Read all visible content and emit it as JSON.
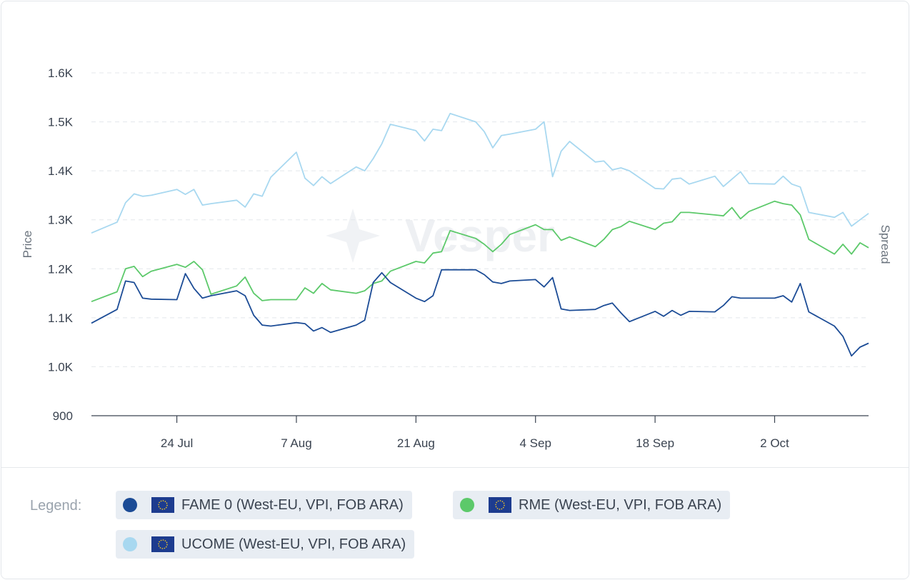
{
  "chart_data": {
    "type": "line",
    "title": "",
    "ylabel": "Price",
    "y2label": "Spread",
    "ylim": [
      900,
      1600
    ],
    "yticks": [
      900,
      1000,
      1100,
      1200,
      1300,
      1400,
      1500,
      1600
    ],
    "ytick_labels": [
      "900",
      "1.0K",
      "1.1K",
      "1.2K",
      "1.3K",
      "1.4K",
      "1.5K",
      "1.6K"
    ],
    "grid": true,
    "x_start": "2023-07-14",
    "x_end": "2023-10-13",
    "xticks": [
      "2023-07-24",
      "2023-08-07",
      "2023-08-21",
      "2023-09-04",
      "2023-09-18",
      "2023-10-02"
    ],
    "xtick_labels": [
      "24 Jul",
      "7 Aug",
      "21 Aug",
      "4 Sep",
      "18 Sep",
      "2 Oct"
    ],
    "series": [
      {
        "name": "UCOME (West-EU, VPI, FOB ARA)",
        "color": "#a8d8f0",
        "x": [
          "2023-07-14",
          "2023-07-17",
          "2023-07-18",
          "2023-07-19",
          "2023-07-20",
          "2023-07-21",
          "2023-07-24",
          "2023-07-25",
          "2023-07-26",
          "2023-07-27",
          "2023-07-28",
          "2023-07-31",
          "2023-08-01",
          "2023-08-02",
          "2023-08-03",
          "2023-08-04",
          "2023-08-07",
          "2023-08-08",
          "2023-08-09",
          "2023-08-10",
          "2023-08-11",
          "2023-08-14",
          "2023-08-15",
          "2023-08-16",
          "2023-08-17",
          "2023-08-18",
          "2023-08-21",
          "2023-08-22",
          "2023-08-23",
          "2023-08-24",
          "2023-08-25",
          "2023-08-28",
          "2023-08-29",
          "2023-08-30",
          "2023-08-31",
          "2023-09-01",
          "2023-09-04",
          "2023-09-05",
          "2023-09-06",
          "2023-09-07",
          "2023-09-08",
          "2023-09-11",
          "2023-09-12",
          "2023-09-13",
          "2023-09-14",
          "2023-09-15",
          "2023-09-18",
          "2023-09-19",
          "2023-09-20",
          "2023-09-21",
          "2023-09-22",
          "2023-09-25",
          "2023-09-26",
          "2023-09-27",
          "2023-09-28",
          "2023-09-29",
          "2023-10-02",
          "2023-10-03",
          "2023-10-04",
          "2023-10-05",
          "2023-10-06",
          "2023-10-09",
          "2023-10-10",
          "2023-10-11",
          "2023-10-12",
          "2023-10-13"
        ],
        "values": [
          1273,
          1295,
          1335,
          1353,
          1348,
          1350,
          1362,
          1352,
          1362,
          1330,
          1333,
          1340,
          1326,
          1353,
          1348,
          1387,
          1438,
          1385,
          1370,
          1388,
          1374,
          1408,
          1400,
          1425,
          1455,
          1495,
          1482,
          1461,
          1485,
          1482,
          1517,
          1500,
          1480,
          1447,
          1472,
          1475,
          1485,
          1500,
          1388,
          1440,
          1460,
          1418,
          1420,
          1402,
          1406,
          1400,
          1364,
          1363,
          1383,
          1385,
          1373,
          1389,
          1368,
          1383,
          1398,
          1374,
          1373,
          1389,
          1373,
          1367,
          1315,
          1305,
          1315,
          1287,
          1300,
          1313
        ]
      },
      {
        "name": "RME (West-EU, VPI, FOB ARA)",
        "color": "#5cc96a",
        "x": [
          "2023-07-14",
          "2023-07-17",
          "2023-07-18",
          "2023-07-19",
          "2023-07-20",
          "2023-07-21",
          "2023-07-24",
          "2023-07-25",
          "2023-07-26",
          "2023-07-27",
          "2023-07-28",
          "2023-07-31",
          "2023-08-01",
          "2023-08-02",
          "2023-08-03",
          "2023-08-04",
          "2023-08-07",
          "2023-08-08",
          "2023-08-09",
          "2023-08-10",
          "2023-08-11",
          "2023-08-14",
          "2023-08-15",
          "2023-08-16",
          "2023-08-17",
          "2023-08-18",
          "2023-08-21",
          "2023-08-22",
          "2023-08-23",
          "2023-08-24",
          "2023-08-25",
          "2023-08-28",
          "2023-08-29",
          "2023-08-30",
          "2023-08-31",
          "2023-09-01",
          "2023-09-04",
          "2023-09-05",
          "2023-09-06",
          "2023-09-07",
          "2023-09-08",
          "2023-09-11",
          "2023-09-12",
          "2023-09-13",
          "2023-09-14",
          "2023-09-15",
          "2023-09-18",
          "2023-09-19",
          "2023-09-20",
          "2023-09-21",
          "2023-09-22",
          "2023-09-25",
          "2023-09-26",
          "2023-09-27",
          "2023-09-28",
          "2023-09-29",
          "2023-10-02",
          "2023-10-03",
          "2023-10-04",
          "2023-10-05",
          "2023-10-06",
          "2023-10-09",
          "2023-10-10",
          "2023-10-11",
          "2023-10-12",
          "2023-10-13"
        ],
        "values": [
          1133,
          1153,
          1200,
          1205,
          1184,
          1195,
          1209,
          1203,
          1215,
          1198,
          1148,
          1165,
          1183,
          1150,
          1135,
          1137,
          1137,
          1161,
          1150,
          1170,
          1157,
          1150,
          1155,
          1170,
          1175,
          1195,
          1215,
          1212,
          1232,
          1235,
          1278,
          1262,
          1250,
          1235,
          1250,
          1270,
          1290,
          1280,
          1280,
          1258,
          1265,
          1245,
          1260,
          1280,
          1286,
          1297,
          1280,
          1293,
          1296,
          1315,
          1315,
          1310,
          1308,
          1325,
          1302,
          1317,
          1338,
          1333,
          1330,
          1310,
          1260,
          1230,
          1250,
          1230,
          1253,
          1243
        ]
      },
      {
        "name": "FAME 0 (West-EU, VPI, FOB ARA)",
        "color": "#1c4c96",
        "x": [
          "2023-07-14",
          "2023-07-17",
          "2023-07-18",
          "2023-07-19",
          "2023-07-20",
          "2023-07-21",
          "2023-07-24",
          "2023-07-25",
          "2023-07-26",
          "2023-07-27",
          "2023-07-28",
          "2023-07-31",
          "2023-08-01",
          "2023-08-02",
          "2023-08-03",
          "2023-08-04",
          "2023-08-07",
          "2023-08-08",
          "2023-08-09",
          "2023-08-10",
          "2023-08-11",
          "2023-08-14",
          "2023-08-15",
          "2023-08-16",
          "2023-08-17",
          "2023-08-18",
          "2023-08-21",
          "2023-08-22",
          "2023-08-23",
          "2023-08-24",
          "2023-08-25",
          "2023-08-28",
          "2023-08-29",
          "2023-08-30",
          "2023-08-31",
          "2023-09-01",
          "2023-09-04",
          "2023-09-05",
          "2023-09-06",
          "2023-09-07",
          "2023-09-08",
          "2023-09-11",
          "2023-09-12",
          "2023-09-13",
          "2023-09-14",
          "2023-09-15",
          "2023-09-18",
          "2023-09-19",
          "2023-09-20",
          "2023-09-21",
          "2023-09-22",
          "2023-09-25",
          "2023-09-26",
          "2023-09-27",
          "2023-09-28",
          "2023-09-29",
          "2023-10-02",
          "2023-10-03",
          "2023-10-04",
          "2023-10-05",
          "2023-10-06",
          "2023-10-09",
          "2023-10-10",
          "2023-10-11",
          "2023-10-12",
          "2023-10-13"
        ],
        "values": [
          1089,
          1117,
          1175,
          1172,
          1140,
          1138,
          1137,
          1190,
          1160,
          1140,
          1145,
          1155,
          1145,
          1105,
          1085,
          1083,
          1090,
          1088,
          1073,
          1080,
          1070,
          1085,
          1095,
          1172,
          1192,
          1172,
          1140,
          1133,
          1145,
          1198,
          1198,
          1198,
          1188,
          1173,
          1170,
          1175,
          1178,
          1163,
          1182,
          1118,
          1115,
          1117,
          1125,
          1130,
          1110,
          1092,
          1113,
          1103,
          1115,
          1105,
          1113,
          1112,
          1125,
          1143,
          1140,
          1140,
          1140,
          1145,
          1132,
          1170,
          1112,
          1083,
          1062,
          1022,
          1040,
          1048
        ]
      }
    ],
    "legend_title": "Legend:",
    "legend_position": "bottom",
    "legend_items": [
      {
        "name": "FAME 0 (West-EU, VPI, FOB ARA)",
        "color": "#1c4c96"
      },
      {
        "name": "RME (West-EU, VPI, FOB ARA)",
        "color": "#5cc96a"
      },
      {
        "name": "UCOME (West-EU, VPI, FOB ARA)",
        "color": "#a8d8f0"
      }
    ]
  },
  "watermark": "Vesper",
  "flag_icon": "eu-flag-icon"
}
